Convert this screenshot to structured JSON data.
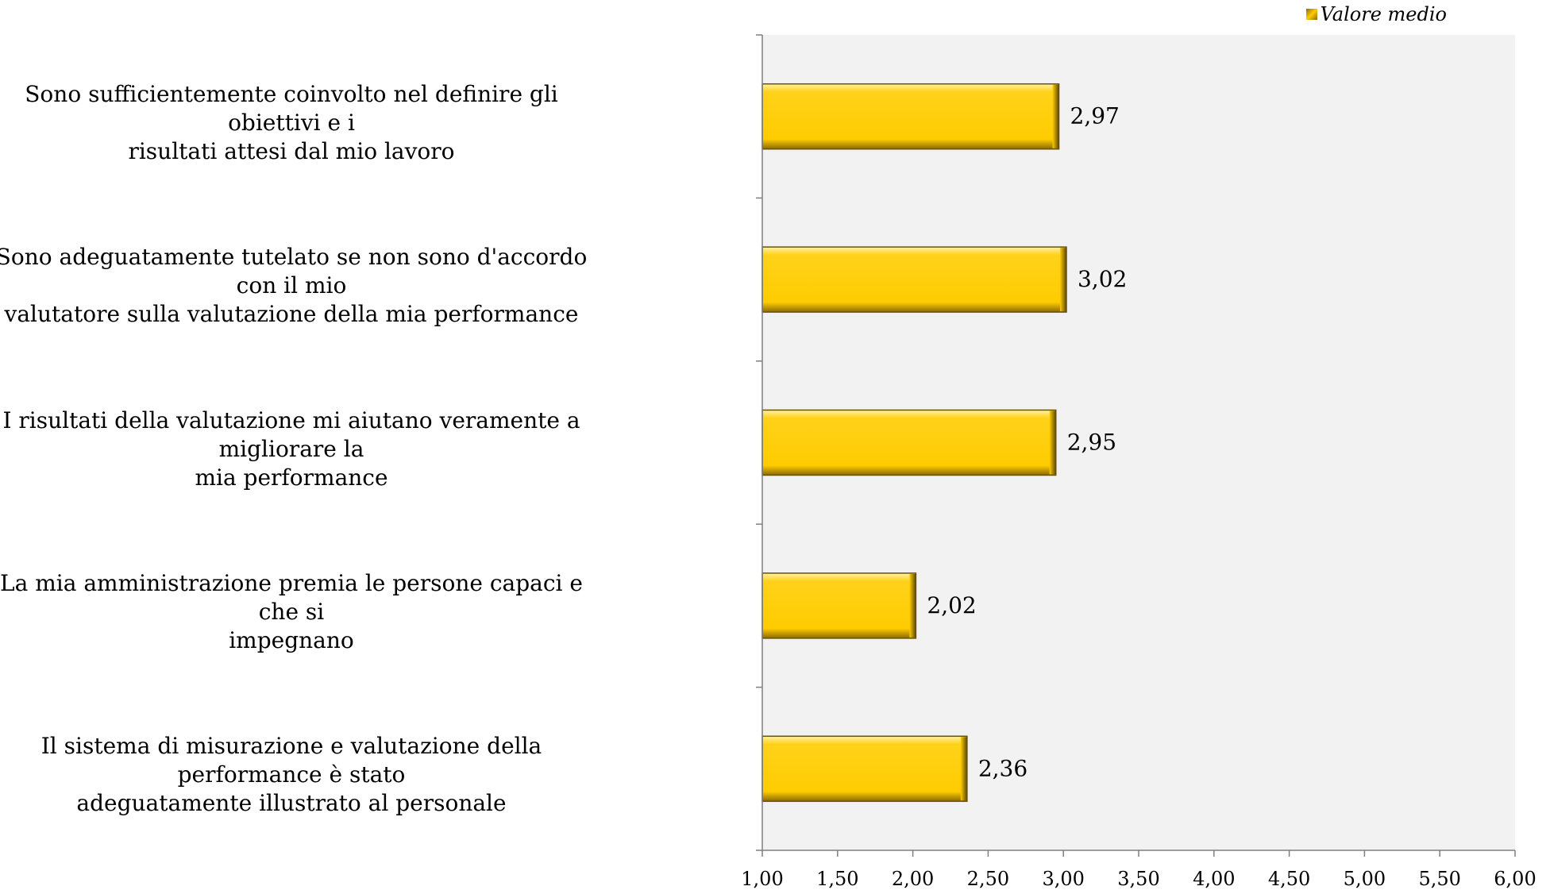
{
  "chart_data": {
    "type": "bar",
    "orientation": "horizontal",
    "categories": [
      "Sono sufficientemente coinvolto nel definire gli obiettivi e i risultati attesi dal mio lavoro",
      "Sono adeguatamente tutelato se non sono d'accordo con il mio valutatore sulla valutazione della mia performance",
      "I risultati della valutazione mi aiutano veramente a migliorare la mia performance",
      "La mia amministrazione premia le persone capaci e che si impegnano",
      "Il sistema di misurazione e valutazione della performance è stato adeguatamente illustrato al personale"
    ],
    "category_lines": [
      [
        "Sono sufficientemente coinvolto nel definire gli obiettivi e i",
        "risultati attesi dal mio lavoro"
      ],
      [
        "Sono adeguatamente tutelato se non sono d'accordo con il mio",
        "valutatore sulla valutazione della mia performance"
      ],
      [
        "I risultati della valutazione mi aiutano veramente a migliorare la",
        "mia performance"
      ],
      [
        "La mia amministrazione premia le persone capaci e che si",
        "impegnano"
      ],
      [
        "Il sistema di misurazione e valutazione della performance è stato",
        "adeguatamente illustrato al personale"
      ]
    ],
    "series": [
      {
        "name": "Valore medio",
        "values": [
          2.97,
          3.02,
          2.95,
          2.02,
          2.36
        ]
      }
    ],
    "value_labels": [
      "2,97",
      "3,02",
      "2,95",
      "2,02",
      "2,36"
    ],
    "xlim": [
      1.0,
      6.0
    ],
    "xticks": [
      1.0,
      1.5,
      2.0,
      2.5,
      3.0,
      3.5,
      4.0,
      4.5,
      5.0,
      5.5,
      6.0
    ],
    "xtick_labels": [
      "1,00",
      "1,50",
      "2,00",
      "2,50",
      "3,00",
      "3,50",
      "4,00",
      "4,50",
      "5,00",
      "5,50",
      "6,00"
    ],
    "grid": false,
    "legend_position": "top-right",
    "colors": {
      "bar": "#ffcc00",
      "bar_edge": "#6b5200",
      "plot_bg": "#f2f2f2",
      "axis": "#7f7f7f"
    }
  }
}
